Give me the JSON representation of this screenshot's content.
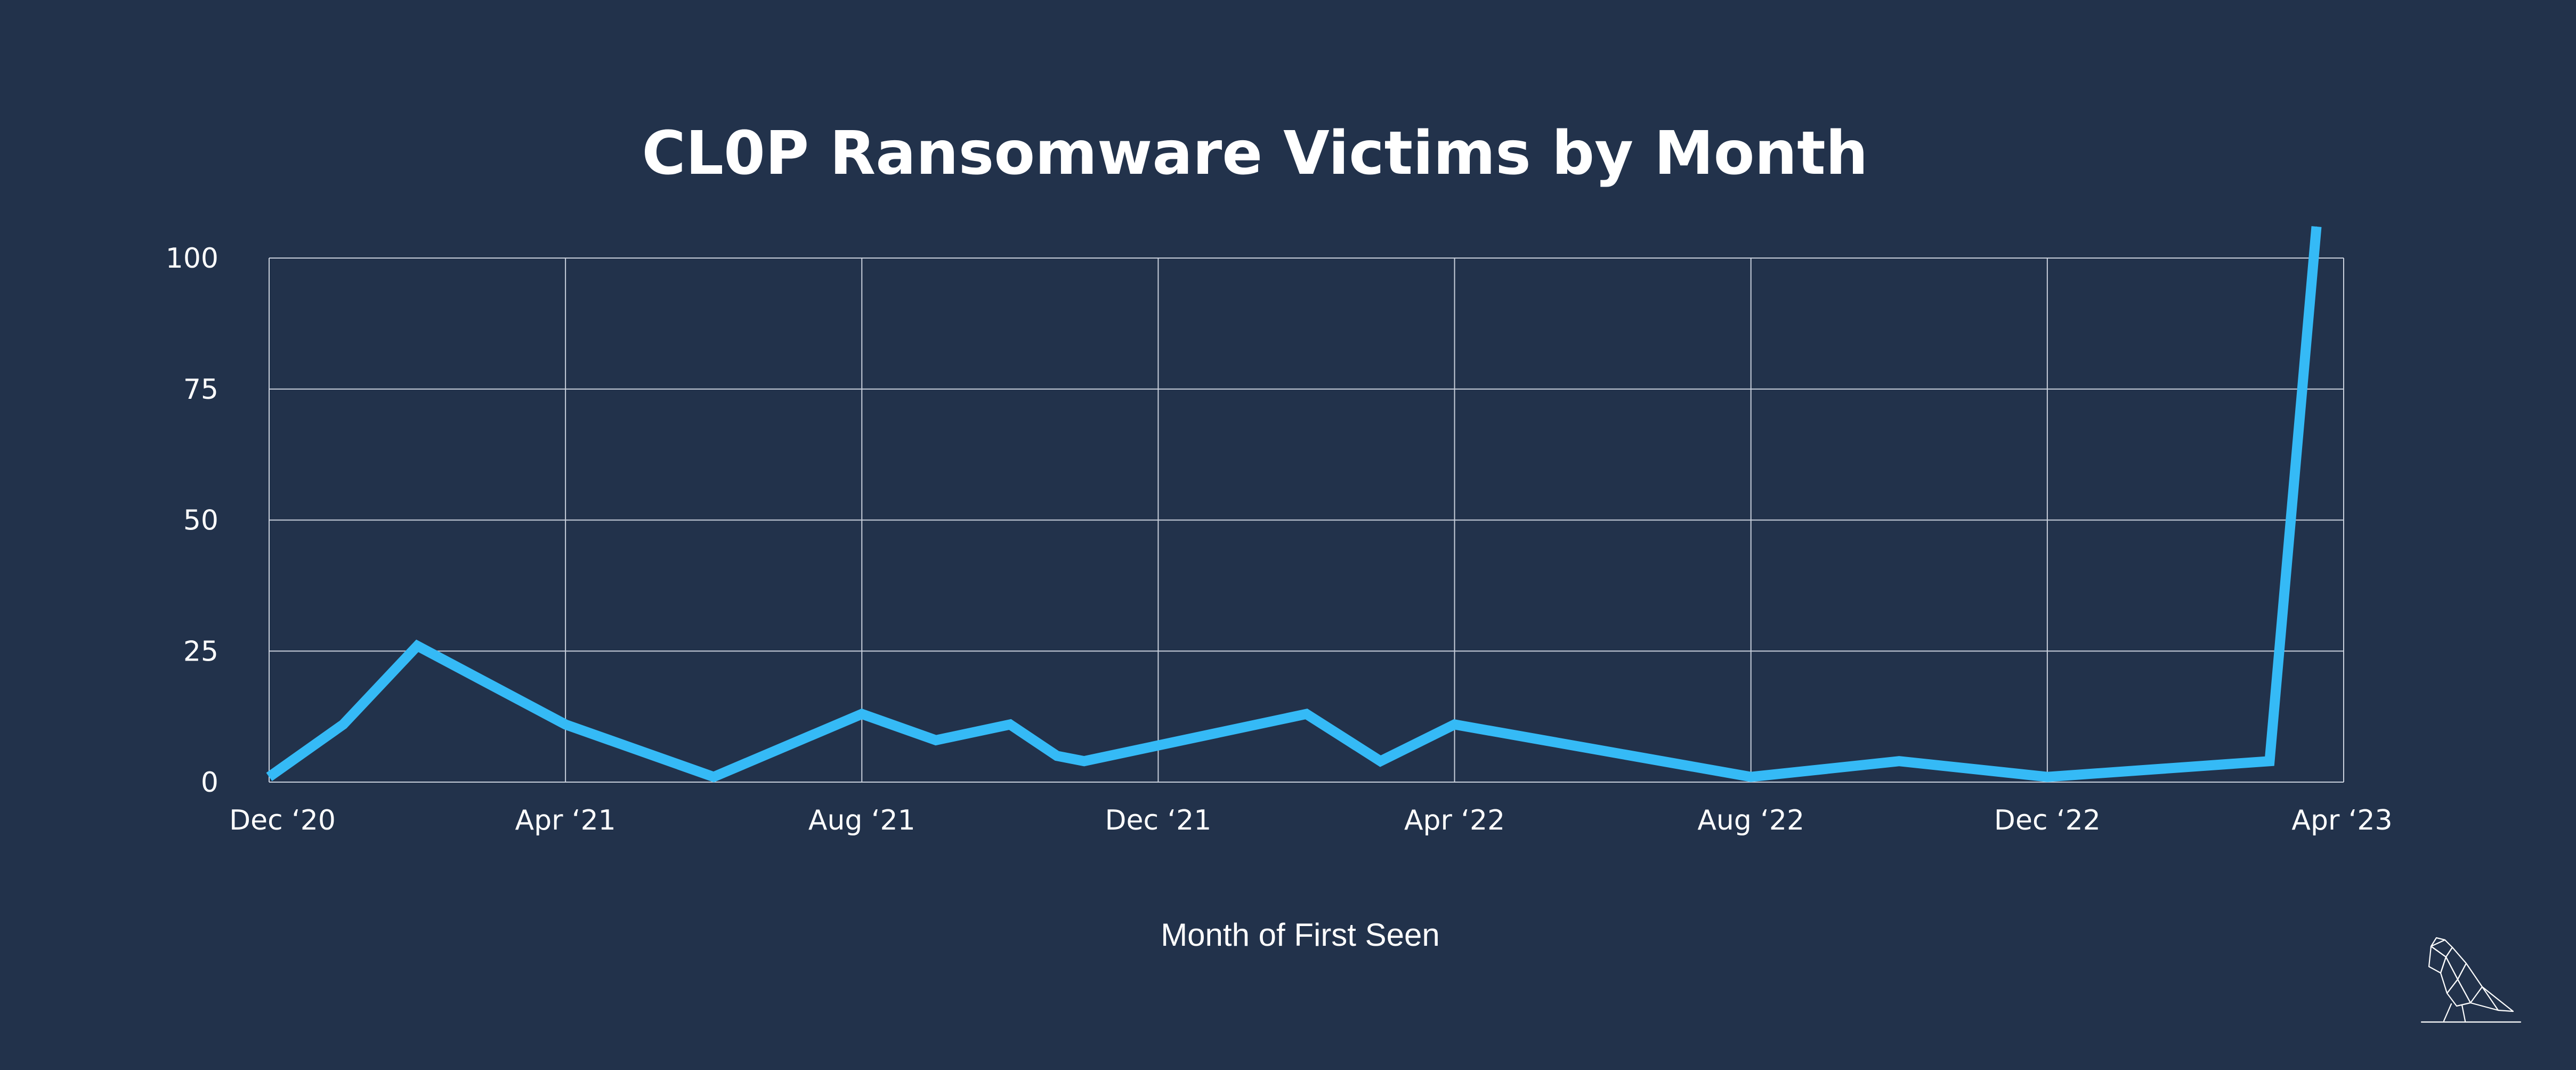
{
  "chart_data": {
    "type": "line",
    "title": "CL0P Ransomware Victims by Month",
    "xlabel": "Month of First Seen",
    "ylabel": "",
    "ylim": [
      0,
      100
    ],
    "yticks": [
      0,
      25,
      50,
      75,
      100
    ],
    "ytick_labels": [
      "0",
      "25",
      "50",
      "75",
      "100"
    ],
    "xlim": [
      "2020-12",
      "2023-04"
    ],
    "xticks": [
      "2020-12",
      "2021-04",
      "2021-08",
      "2021-12",
      "2022-04",
      "2022-08",
      "2022-12",
      "2023-04"
    ],
    "xtick_labels": [
      "Dec ‘20",
      "Apr ‘21",
      "Aug ‘21",
      "Dec ‘21",
      "Apr ‘22",
      "Aug ‘22",
      "Dec ‘22",
      "Apr ‘23"
    ],
    "grid": true,
    "series": [
      {
        "color": "#35baf6",
        "points": [
          {
            "x": "2020-12",
            "y": 1
          },
          {
            "x": "2021-01",
            "y": 11
          },
          {
            "x": "2021-02",
            "y": 26
          },
          {
            "x": "2021-04",
            "y": 11
          },
          {
            "x": "2021-06",
            "y": 1
          },
          {
            "x": "2021-08",
            "y": 13
          },
          {
            "x": "2021-09",
            "y": 8
          },
          {
            "x": "2021-10",
            "y": 11
          },
          {
            "x": "2021-10",
            "y": 5
          },
          {
            "x": "2021-11",
            "y": 4
          },
          {
            "x": "2022-02",
            "y": 13
          },
          {
            "x": "2022-03",
            "y": 4
          },
          {
            "x": "2022-04",
            "y": 11
          },
          {
            "x": "2022-08",
            "y": 1
          },
          {
            "x": "2022-10",
            "y": 4
          },
          {
            "x": "2022-12",
            "y": 1
          },
          {
            "x": "2023-03",
            "y": 4
          },
          {
            "x": "2023-03",
            "y": 106
          }
        ]
      }
    ]
  },
  "logo": {
    "name": "bird-logo"
  }
}
